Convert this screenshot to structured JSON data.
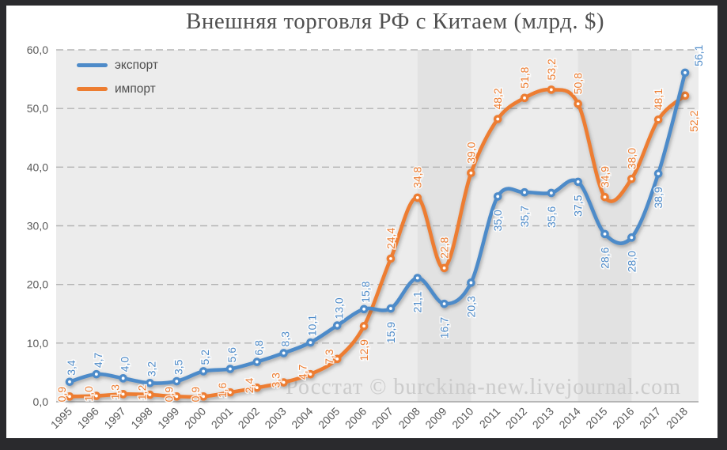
{
  "title": "Внешняя торговля РФ с Китаем (млрд. $)",
  "watermark": "Росстат © burckina-new.livejournal.com",
  "legend": {
    "items": [
      {
        "label": "экспорт",
        "color": "#4E8BC9"
      },
      {
        "label": "импорт",
        "color": "#ED7D31"
      }
    ]
  },
  "colors": {
    "export_line": "#4E8BC9",
    "import_line": "#ED7D31",
    "plot_background": "#ececec",
    "highlight_band": "#e2e2e2",
    "gridline": "#b3b3b3",
    "axis_line": "#a3a3a3",
    "tick_text": "#595959",
    "title_text": "#4f4f4f",
    "watermark_text": "#cbcbcb",
    "frame": "#2a2a2d"
  },
  "chart_data": {
    "type": "line",
    "title": "Внешняя торговля РФ с Китаем (млрд. $)",
    "categories": [
      "1995",
      "1996",
      "1997",
      "1998",
      "1999",
      "2000",
      "2001",
      "2002",
      "2003",
      "2004",
      "2005",
      "2006",
      "2007",
      "2008",
      "2009",
      "2010",
      "2011",
      "2012",
      "2013",
      "2014",
      "2015",
      "2016",
      "2017",
      "2018"
    ],
    "series": [
      {
        "name": "экспорт",
        "color": "#4E8BC9",
        "values": [
          3.4,
          4.7,
          4.0,
          3.2,
          3.5,
          5.2,
          5.6,
          6.8,
          8.3,
          10.1,
          13.0,
          15.8,
          15.9,
          21.1,
          16.7,
          20.3,
          35.0,
          35.7,
          35.6,
          37.5,
          28.6,
          28.0,
          38.9,
          56.1
        ],
        "labels": [
          "3,4",
          "4,7",
          "4,0",
          "3,2",
          "3,5",
          "5,2",
          "5,6",
          "6,8",
          "8,3",
          "10,1",
          "13,0",
          "15,8",
          "15,9",
          "21,1",
          "16,7",
          "20,3",
          "35,0",
          "35,7",
          "35,6",
          "37,5",
          "28,6",
          "28,0",
          "38,9",
          "56,1"
        ]
      },
      {
        "name": "импорт",
        "color": "#ED7D31",
        "values": [
          0.9,
          1.0,
          1.3,
          1.2,
          0.9,
          0.9,
          1.6,
          2.4,
          3.3,
          4.7,
          7.3,
          12.9,
          24.4,
          34.8,
          22.8,
          39.0,
          48.2,
          51.8,
          53.2,
          50.8,
          34.9,
          38.0,
          48.1,
          52.2
        ],
        "labels": [
          "0,9",
          "1,0",
          "1,3",
          "1,2",
          "0,9",
          "0,9",
          "1,6",
          "2,4",
          "3,3",
          "4,7",
          "7,3",
          "12,9",
          "24,4",
          "34,8",
          "22,8",
          "39,0",
          "48,2",
          "51,8",
          "53,2",
          "50,8",
          "34,9",
          "38,0",
          "48,1",
          "52,2"
        ]
      }
    ],
    "ylim": [
      0,
      60
    ],
    "ytick_labels": [
      "0,0",
      "10,0",
      "20,0",
      "30,0",
      "40,0",
      "50,0",
      "60,0"
    ],
    "grid": "horizontal-dashed",
    "legend_position": "top-left-inside",
    "line_style": "smooth",
    "highlight_bands": [
      {
        "from": "2008",
        "to": "2010"
      },
      {
        "from": "2014",
        "to": "2016"
      }
    ],
    "source_note": "Росстат © burckina-new.livejournal.com"
  }
}
